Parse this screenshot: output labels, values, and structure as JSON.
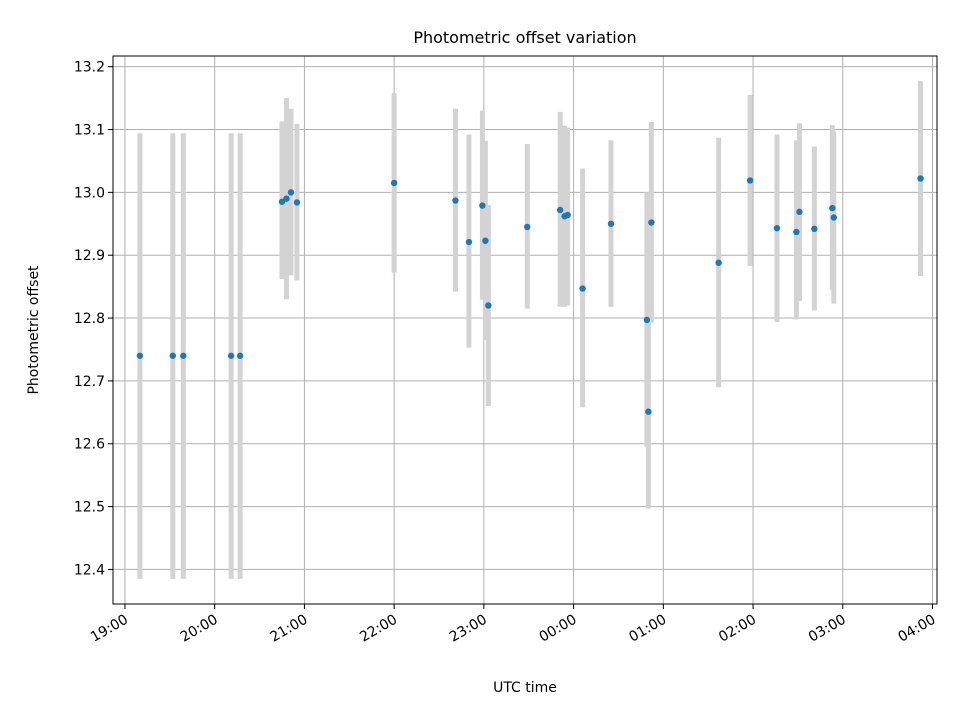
{
  "chart_data": {
    "type": "scatter",
    "title": "Photometric offset variation",
    "xlabel": "UTC time",
    "ylabel": "Photometric offset",
    "x_axis": {
      "kind": "time",
      "ticks": [
        "19:00",
        "20:00",
        "21:00",
        "22:00",
        "23:00",
        "00:00",
        "01:00",
        "02:00",
        "03:00",
        "04:00"
      ],
      "range": [
        "18:52",
        "04:03"
      ]
    },
    "y_axis": {
      "ticks": [
        "12.4",
        "12.5",
        "12.6",
        "12.7",
        "12.8",
        "12.9",
        "13.0",
        "13.1",
        "13.2"
      ],
      "range": [
        12.345,
        13.217
      ]
    },
    "grid": true,
    "colors": {
      "point": "#1f77b4",
      "errorbar": "#d3d3d3"
    },
    "series": [
      {
        "points": [
          {
            "t": "19:10",
            "y": 12.74,
            "ylo": 12.385,
            "yhi": 13.094
          },
          {
            "t": "19:32",
            "y": 12.74,
            "ylo": 12.385,
            "yhi": 13.094
          },
          {
            "t": "19:39",
            "y": 12.74,
            "ylo": 12.385,
            "yhi": 13.094
          },
          {
            "t": "20:11",
            "y": 12.74,
            "ylo": 12.385,
            "yhi": 13.094
          },
          {
            "t": "20:17",
            "y": 12.74,
            "ylo": 12.385,
            "yhi": 13.094
          },
          {
            "t": "20:45",
            "y": 12.985,
            "ylo": 12.862,
            "yhi": 13.113
          },
          {
            "t": "20:48",
            "y": 12.99,
            "ylo": 12.83,
            "yhi": 13.15
          },
          {
            "t": "20:51",
            "y": 13.0,
            "ylo": 12.868,
            "yhi": 13.133
          },
          {
            "t": "20:55",
            "y": 12.984,
            "ylo": 12.86,
            "yhi": 13.109
          },
          {
            "t": "22:00",
            "y": 13.015,
            "ylo": 12.872,
            "yhi": 13.158
          },
          {
            "t": "22:41",
            "y": 12.987,
            "ylo": 12.842,
            "yhi": 13.133
          },
          {
            "t": "22:50",
            "y": 12.921,
            "ylo": 12.753,
            "yhi": 13.092
          },
          {
            "t": "22:59",
            "y": 12.979,
            "ylo": 12.829,
            "yhi": 13.13
          },
          {
            "t": "23:01",
            "y": 12.923,
            "ylo": 12.765,
            "yhi": 13.082
          },
          {
            "t": "23:03",
            "y": 12.82,
            "ylo": 12.66,
            "yhi": 12.98
          },
          {
            "t": "23:29",
            "y": 12.945,
            "ylo": 12.815,
            "yhi": 13.077
          },
          {
            "t": "23:51",
            "y": 12.972,
            "ylo": 12.818,
            "yhi": 13.128
          },
          {
            "t": "23:54",
            "y": 12.962,
            "ylo": 12.818,
            "yhi": 13.106
          },
          {
            "t": "23:56",
            "y": 12.964,
            "ylo": 12.82,
            "yhi": 13.103
          },
          {
            "t": "00:06",
            "y": 12.847,
            "ylo": 12.658,
            "yhi": 13.038
          },
          {
            "t": "00:25",
            "y": 12.95,
            "ylo": 12.818,
            "yhi": 13.083
          },
          {
            "t": "00:49",
            "y": 12.797,
            "ylo": 12.595,
            "yhi": 13.0
          },
          {
            "t": "00:50",
            "y": 12.651,
            "ylo": 12.497,
            "yhi": 12.805
          },
          {
            "t": "00:52",
            "y": 12.952,
            "ylo": 12.793,
            "yhi": 13.112
          },
          {
            "t": "01:37",
            "y": 12.888,
            "ylo": 12.69,
            "yhi": 13.087
          },
          {
            "t": "01:58",
            "y": 13.019,
            "ylo": 12.883,
            "yhi": 13.155
          },
          {
            "t": "02:16",
            "y": 12.943,
            "ylo": 12.794,
            "yhi": 13.092
          },
          {
            "t": "02:29",
            "y": 12.937,
            "ylo": 12.798,
            "yhi": 13.083
          },
          {
            "t": "02:31",
            "y": 12.969,
            "ylo": 12.827,
            "yhi": 13.11
          },
          {
            "t": "02:41",
            "y": 12.942,
            "ylo": 12.812,
            "yhi": 13.073
          },
          {
            "t": "02:53",
            "y": 12.975,
            "ylo": 12.845,
            "yhi": 13.107
          },
          {
            "t": "02:54",
            "y": 12.96,
            "ylo": 12.823,
            "yhi": 13.097
          },
          {
            "t": "03:52",
            "y": 13.022,
            "ylo": 12.867,
            "yhi": 13.177
          }
        ]
      }
    ]
  }
}
